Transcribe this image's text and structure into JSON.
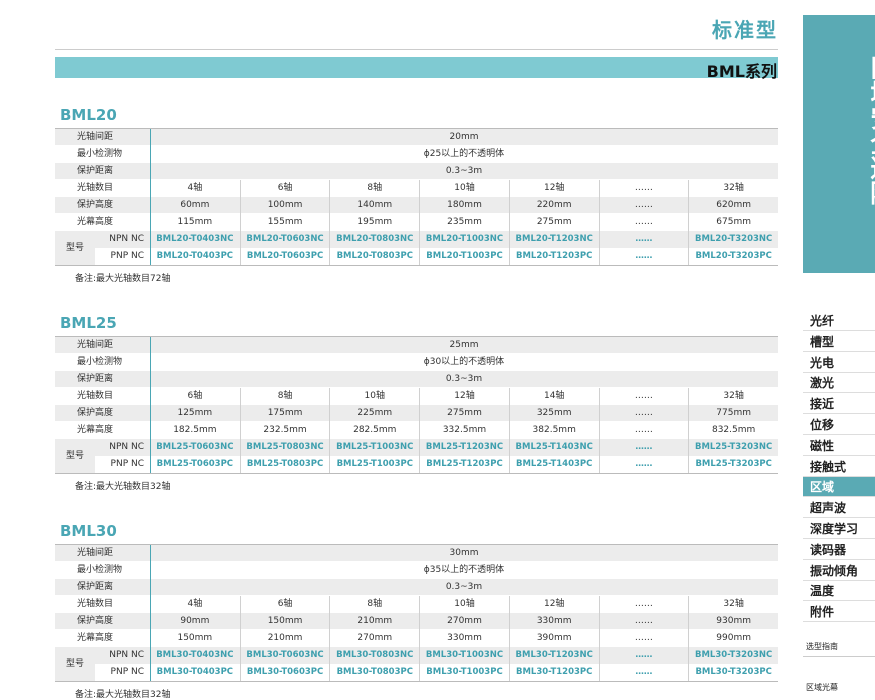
{
  "header": {
    "title": "标准型",
    "series": "BML系列"
  },
  "sidebar": {
    "title": "区域安全避障",
    "items": [
      "光纤",
      "槽型",
      "光电",
      "激光",
      "接近",
      "位移",
      "磁性",
      "接触式",
      "区域",
      "超声波",
      "深度学习",
      "读码器",
      "振动倾角",
      "温度",
      "附件"
    ],
    "footer": [
      "选型指南",
      "区域光幕"
    ]
  },
  "row_labels": [
    "光轴间距",
    "最小检测物",
    "保护距离",
    "光轴数目",
    "保护高度",
    "光幕高度",
    "型号"
  ],
  "model_types": [
    "NPN NC",
    "PNP NC"
  ],
  "sections": [
    {
      "title": "BML20",
      "spacing": "20mm",
      "min_object": "ϕ25以上的不透明体",
      "distance": "0.3~3m",
      "axes": [
        "4轴",
        "6轴",
        "8轴",
        "10轴",
        "12轴",
        "……",
        "32轴"
      ],
      "protect_height": [
        "60mm",
        "100mm",
        "140mm",
        "180mm",
        "220mm",
        "……",
        "620mm"
      ],
      "curtain_height": [
        "115mm",
        "155mm",
        "195mm",
        "235mm",
        "275mm",
        "……",
        "675mm"
      ],
      "npn": [
        "BML20-T0403NC",
        "BML20-T0603NC",
        "BML20-T0803NC",
        "BML20-T1003NC",
        "BML20-T1203NC",
        "……",
        "BML20-T3203NC"
      ],
      "pnp": [
        "BML20-T0403PC",
        "BML20-T0603PC",
        "BML20-T0803PC",
        "BML20-T1003PC",
        "BML20-T1203PC",
        "……",
        "BML20-T3203PC"
      ],
      "note": "备注:最大光轴数目72轴"
    },
    {
      "title": "BML25",
      "spacing": "25mm",
      "min_object": "ϕ30以上的不透明体",
      "distance": "0.3~3m",
      "axes": [
        "6轴",
        "8轴",
        "10轴",
        "12轴",
        "14轴",
        "……",
        "32轴"
      ],
      "protect_height": [
        "125mm",
        "175mm",
        "225mm",
        "275mm",
        "325mm",
        "……",
        "775mm"
      ],
      "curtain_height": [
        "182.5mm",
        "232.5mm",
        "282.5mm",
        "332.5mm",
        "382.5mm",
        "……",
        "832.5mm"
      ],
      "npn": [
        "BML25-T0603NC",
        "BML25-T0803NC",
        "BML25-T1003NC",
        "BML25-T1203NC",
        "BML25-T1403NC",
        "……",
        "BML25-T3203NC"
      ],
      "pnp": [
        "BML25-T0603PC",
        "BML25-T0803PC",
        "BML25-T1003PC",
        "BML25-T1203PC",
        "BML25-T1403PC",
        "……",
        "BML25-T3203PC"
      ],
      "note": "备注:最大光轴数目32轴"
    },
    {
      "title": "BML30",
      "spacing": "30mm",
      "min_object": "ϕ35以上的不透明体",
      "distance": "0.3~3m",
      "axes": [
        "4轴",
        "6轴",
        "8轴",
        "10轴",
        "12轴",
        "……",
        "32轴"
      ],
      "protect_height": [
        "90mm",
        "150mm",
        "210mm",
        "270mm",
        "330mm",
        "……",
        "930mm"
      ],
      "curtain_height": [
        "150mm",
        "210mm",
        "270mm",
        "330mm",
        "390mm",
        "……",
        "990mm"
      ],
      "npn": [
        "BML30-T0403NC",
        "BML30-T0603NC",
        "BML30-T0803NC",
        "BML30-T1003NC",
        "BML30-T1203NC",
        "……",
        "BML30-T3203NC"
      ],
      "pnp": [
        "BML30-T0403PC",
        "BML30-T0603PC",
        "BML30-T0803PC",
        "BML30-T1003PC",
        "BML30-T1203PC",
        "……",
        "BML30-T3203PC"
      ],
      "note": "备注:最大光轴数目32轴"
    }
  ]
}
